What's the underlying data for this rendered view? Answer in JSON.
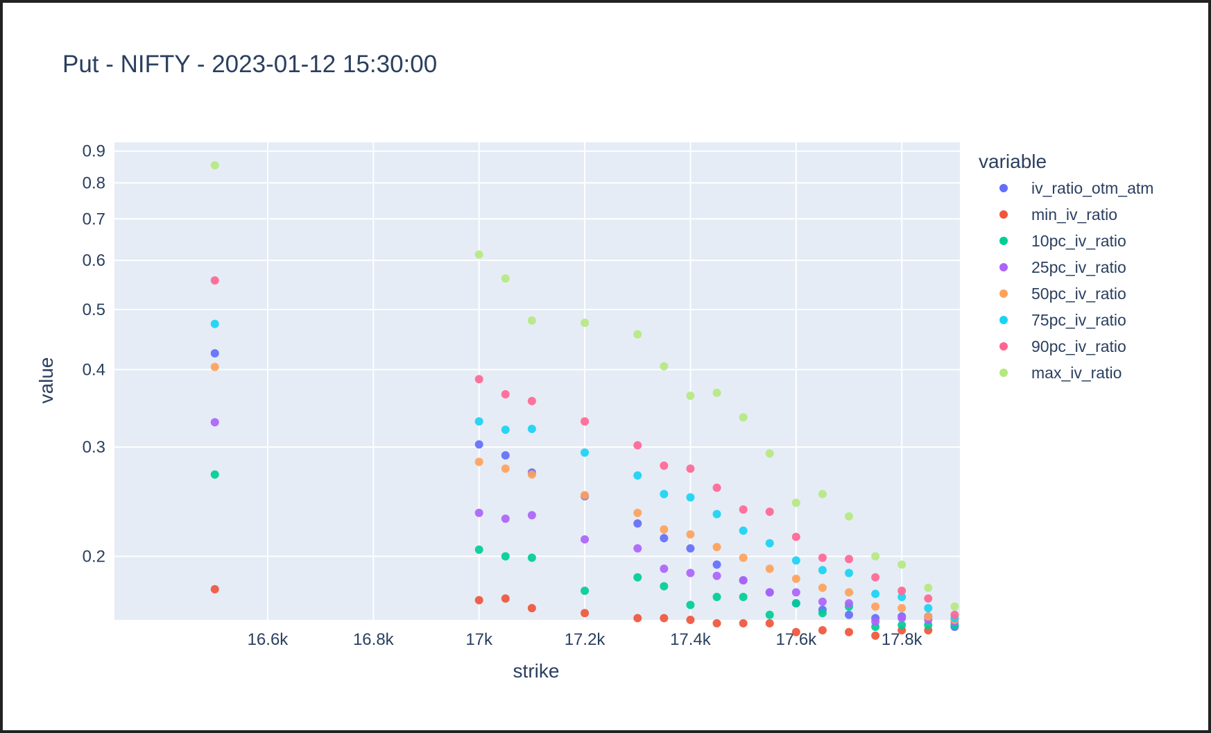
{
  "chart_data": {
    "type": "scatter",
    "title": "Put - NIFTY - 2023-01-12 15:30:00",
    "xlabel": "strike",
    "ylabel": "value",
    "y_scale": "log",
    "xlim": [
      16310,
      17910
    ],
    "ylim": [
      0.158,
      0.93
    ],
    "x_ticks": [
      16600,
      16800,
      17000,
      17200,
      17400,
      17600,
      17800
    ],
    "x_tick_labels": [
      "16.6k",
      "16.8k",
      "17k",
      "17.2k",
      "17.4k",
      "17.6k",
      "17.8k"
    ],
    "y_ticks": [
      0.2,
      0.3,
      0.4,
      0.5,
      0.6,
      0.7,
      0.8,
      0.9
    ],
    "y_tick_labels": [
      "0.2",
      "0.3",
      "0.4",
      "0.5",
      "0.6",
      "0.7",
      "0.8",
      "0.9"
    ],
    "grid": true,
    "plot_background": "#e5ecf6",
    "legend_title": "variable",
    "legend_position": "right",
    "series": [
      {
        "name": "iv_ratio_otm_atm",
        "color": "#636efa",
        "points": [
          [
            16500,
            0.425
          ],
          [
            17000,
            0.303
          ],
          [
            17050,
            0.291
          ],
          [
            17100,
            0.273
          ],
          [
            17200,
            0.25
          ],
          [
            17300,
            0.226
          ],
          [
            17350,
            0.214
          ],
          [
            17400,
            0.206
          ],
          [
            17450,
            0.194
          ],
          [
            17500,
            0.183
          ],
          [
            17550,
            0.175
          ],
          [
            17600,
            0.168
          ],
          [
            17650,
            0.164
          ],
          [
            17700,
            0.161
          ],
          [
            17750,
            0.159
          ],
          [
            17800,
            0.16
          ],
          [
            17850,
            0.16
          ],
          [
            17900,
            0.154
          ]
        ]
      },
      {
        "name": "min_iv_ratio",
        "color": "#ef553b",
        "points": [
          [
            16500,
            0.177
          ],
          [
            17000,
            0.17
          ],
          [
            17050,
            0.171
          ],
          [
            17100,
            0.165
          ],
          [
            17200,
            0.162
          ],
          [
            17300,
            0.159
          ],
          [
            17350,
            0.159
          ],
          [
            17400,
            0.158
          ],
          [
            17450,
            0.156
          ],
          [
            17500,
            0.156
          ],
          [
            17550,
            0.156
          ],
          [
            17600,
            0.151
          ],
          [
            17650,
            0.152
          ],
          [
            17700,
            0.151
          ],
          [
            17750,
            0.149
          ],
          [
            17800,
            0.152
          ],
          [
            17850,
            0.152
          ]
        ]
      },
      {
        "name": "10pc_iv_ratio",
        "color": "#00cc96",
        "points": [
          [
            16500,
            0.271
          ],
          [
            17000,
            0.205
          ],
          [
            17050,
            0.2
          ],
          [
            17100,
            0.199
          ],
          [
            17200,
            0.176
          ],
          [
            17300,
            0.185
          ],
          [
            17350,
            0.179
          ],
          [
            17400,
            0.167
          ],
          [
            17450,
            0.172
          ],
          [
            17500,
            0.172
          ],
          [
            17550,
            0.161
          ],
          [
            17600,
            0.168
          ],
          [
            17650,
            0.162
          ],
          [
            17700,
            0.166
          ],
          [
            17750,
            0.154
          ],
          [
            17800,
            0.155
          ],
          [
            17850,
            0.155
          ],
          [
            17900,
            0.155
          ]
        ]
      },
      {
        "name": "25pc_iv_ratio",
        "color": "#ab63fa",
        "points": [
          [
            16500,
            0.329
          ],
          [
            17000,
            0.235
          ],
          [
            17050,
            0.23
          ],
          [
            17100,
            0.233
          ],
          [
            17200,
            0.213
          ],
          [
            17300,
            0.206
          ],
          [
            17350,
            0.191
          ],
          [
            17400,
            0.188
          ],
          [
            17450,
            0.186
          ],
          [
            17500,
            0.183
          ],
          [
            17550,
            0.175
          ],
          [
            17600,
            0.175
          ],
          [
            17650,
            0.169
          ],
          [
            17700,
            0.168
          ],
          [
            17750,
            0.157
          ],
          [
            17800,
            0.159
          ],
          [
            17850,
            0.158
          ],
          [
            17900,
            0.157
          ]
        ]
      },
      {
        "name": "50pc_iv_ratio",
        "color": "#ffa15a",
        "points": [
          [
            16500,
            0.404
          ],
          [
            17000,
            0.284
          ],
          [
            17050,
            0.277
          ],
          [
            17100,
            0.271
          ],
          [
            17200,
            0.251
          ],
          [
            17300,
            0.235
          ],
          [
            17350,
            0.221
          ],
          [
            17400,
            0.217
          ],
          [
            17450,
            0.207
          ],
          [
            17500,
            0.199
          ],
          [
            17550,
            0.191
          ],
          [
            17600,
            0.184
          ],
          [
            17650,
            0.178
          ],
          [
            17700,
            0.175
          ],
          [
            17750,
            0.166
          ],
          [
            17800,
            0.165
          ],
          [
            17850,
            0.16
          ],
          [
            17900,
            0.158
          ]
        ]
      },
      {
        "name": "75pc_iv_ratio",
        "color": "#19d3f3",
        "points": [
          [
            16500,
            0.474
          ],
          [
            17000,
            0.33
          ],
          [
            17050,
            0.32
          ],
          [
            17100,
            0.321
          ],
          [
            17200,
            0.294
          ],
          [
            17300,
            0.27
          ],
          [
            17350,
            0.252
          ],
          [
            17400,
            0.249
          ],
          [
            17450,
            0.234
          ],
          [
            17500,
            0.22
          ],
          [
            17550,
            0.21
          ],
          [
            17600,
            0.197
          ],
          [
            17650,
            0.19
          ],
          [
            17700,
            0.188
          ],
          [
            17750,
            0.174
          ],
          [
            17800,
            0.172
          ],
          [
            17850,
            0.165
          ],
          [
            17900,
            0.159
          ]
        ]
      },
      {
        "name": "90pc_iv_ratio",
        "color": "#ff6692",
        "points": [
          [
            16500,
            0.557
          ],
          [
            17000,
            0.386
          ],
          [
            17050,
            0.365
          ],
          [
            17100,
            0.356
          ],
          [
            17200,
            0.33
          ],
          [
            17300,
            0.302
          ],
          [
            17350,
            0.28
          ],
          [
            17400,
            0.277
          ],
          [
            17450,
            0.258
          ],
          [
            17500,
            0.238
          ],
          [
            17550,
            0.236
          ],
          [
            17600,
            0.215
          ],
          [
            17650,
            0.199
          ],
          [
            17700,
            0.198
          ],
          [
            17750,
            0.185
          ],
          [
            17800,
            0.176
          ],
          [
            17850,
            0.171
          ],
          [
            17900,
            0.161
          ]
        ]
      },
      {
        "name": "max_iv_ratio",
        "color": "#b6e880",
        "points": [
          [
            16500,
            0.854
          ],
          [
            17000,
            0.613
          ],
          [
            17050,
            0.561
          ],
          [
            17100,
            0.48
          ],
          [
            17200,
            0.476
          ],
          [
            17300,
            0.456
          ],
          [
            17350,
            0.405
          ],
          [
            17400,
            0.363
          ],
          [
            17450,
            0.367
          ],
          [
            17500,
            0.335
          ],
          [
            17550,
            0.293
          ],
          [
            17600,
            0.244
          ],
          [
            17650,
            0.252
          ],
          [
            17700,
            0.232
          ],
          [
            17750,
            0.2
          ],
          [
            17800,
            0.194
          ],
          [
            17850,
            0.178
          ],
          [
            17900,
            0.166
          ]
        ]
      }
    ]
  }
}
